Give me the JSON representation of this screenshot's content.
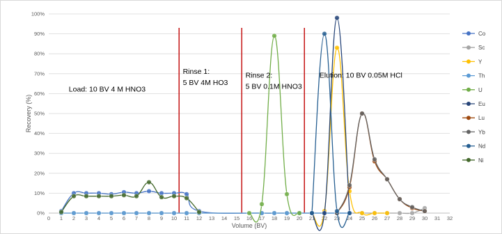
{
  "chart_data": {
    "type": "line",
    "xlabel": "Volume (BV)",
    "ylabel": "Recovery (%)",
    "xlim": [
      0,
      32
    ],
    "ylim": [
      0,
      100
    ],
    "x_ticks": [
      "0",
      "1",
      "2",
      "3",
      "4",
      "5",
      "6",
      "7",
      "8",
      "9",
      "10",
      "11",
      "12",
      "13",
      "14",
      "15",
      "16",
      "17",
      "18",
      "19",
      "20",
      "21",
      "22",
      "23",
      "24",
      "25",
      "26",
      "27",
      "28",
      "29",
      "30",
      "31",
      "32"
    ],
    "y_ticks": [
      "0%",
      "10%",
      "20%",
      "30%",
      "40%",
      "50%",
      "60%",
      "70%",
      "80%",
      "90%",
      "100%"
    ],
    "grid": "horizontal",
    "legend_position": "right",
    "dividers": [
      {
        "x": 10.4,
        "color": "#C00000"
      },
      {
        "x": 15.4,
        "color": "#C00000"
      },
      {
        "x": 20.4,
        "color": "#C00000"
      }
    ],
    "annotations": [
      {
        "lines": [
          "Load: 10 BV 4 M HNO3"
        ],
        "x": 1.6,
        "y": 61
      },
      {
        "lines": [
          "Rinse 1:",
          "5 BV 4M HO3"
        ],
        "x": 10.7,
        "y": 70
      },
      {
        "lines": [
          "Rinse 2:",
          "5 BV 0.1M HNO3"
        ],
        "x": 15.7,
        "y": 68
      },
      {
        "lines": [
          "Elution: 10 BV 0.05M HCl"
        ],
        "x": 21.6,
        "y": 68
      }
    ],
    "series": [
      {
        "name": "Co",
        "color": "#4472C4",
        "x": [
          1,
          2,
          3,
          4,
          5,
          6,
          7,
          8,
          9,
          10,
          11,
          12,
          17,
          18,
          19,
          20,
          21,
          22,
          23,
          24
        ],
        "y": [
          1,
          10,
          10,
          10,
          9.5,
          10.5,
          10,
          11,
          10,
          10,
          9.5,
          1,
          0,
          0,
          0,
          0,
          0,
          0,
          0,
          0
        ]
      },
      {
        "name": "Sc",
        "color": "#A5A5A5",
        "x": [
          1,
          2,
          3,
          4,
          5,
          6,
          7,
          8,
          9,
          10,
          11,
          12,
          17,
          18,
          19,
          20,
          21,
          22,
          23,
          24,
          25,
          26,
          27,
          28,
          29,
          30
        ],
        "y": [
          0,
          0,
          0,
          0,
          0,
          0,
          0,
          0,
          0,
          0,
          0,
          0,
          0,
          0,
          0,
          0,
          0,
          0,
          0,
          0,
          0,
          0,
          0,
          0,
          0,
          2.5
        ]
      },
      {
        "name": "Y",
        "color": "#FFC000",
        "x": [
          21,
          22,
          23,
          24,
          25,
          26,
          27
        ],
        "y": [
          0,
          1,
          83,
          11,
          0,
          0,
          0
        ]
      },
      {
        "name": "Th",
        "color": "#5B9BD5",
        "x": [
          1,
          2,
          3,
          4,
          5,
          6,
          7,
          8,
          9,
          10,
          11,
          12,
          17,
          18,
          19,
          20,
          21,
          22,
          23,
          24
        ],
        "y": [
          0,
          0,
          0,
          0,
          0,
          0,
          0,
          0,
          0,
          0,
          0,
          0,
          0,
          0,
          0,
          0,
          0,
          0,
          0,
          0
        ]
      },
      {
        "name": "U",
        "color": "#70AD47",
        "x": [
          16,
          17,
          18,
          19,
          20
        ],
        "y": [
          0,
          4.5,
          89,
          9.5,
          0
        ]
      },
      {
        "name": "Eu",
        "color": "#264478",
        "x": [
          21,
          22,
          23,
          24
        ],
        "y": [
          0,
          0,
          98,
          0
        ]
      },
      {
        "name": "Lu",
        "color": "#9E480E",
        "x": [
          23,
          24,
          25,
          26,
          27,
          28,
          29,
          30
        ],
        "y": [
          0,
          13,
          50,
          26,
          17,
          7,
          2.5,
          1
        ]
      },
      {
        "name": "Yb",
        "color": "#636363",
        "x": [
          23,
          24,
          25,
          26,
          27,
          28,
          29,
          30
        ],
        "y": [
          0,
          14,
          50,
          27,
          17,
          7,
          3,
          1
        ]
      },
      {
        "name": "Nd",
        "color": "#255E91",
        "x": [
          21,
          22,
          23,
          24
        ],
        "y": [
          0,
          90,
          1,
          0
        ]
      },
      {
        "name": "Ni",
        "color": "#43682B",
        "x": [
          1,
          2,
          3,
          4,
          5,
          6,
          7,
          8,
          9,
          10,
          11,
          12
        ],
        "y": [
          0.5,
          8.5,
          8.5,
          8.5,
          8.5,
          9,
          8.5,
          15.5,
          8,
          8.5,
          7.5,
          0.5
        ]
      }
    ]
  }
}
